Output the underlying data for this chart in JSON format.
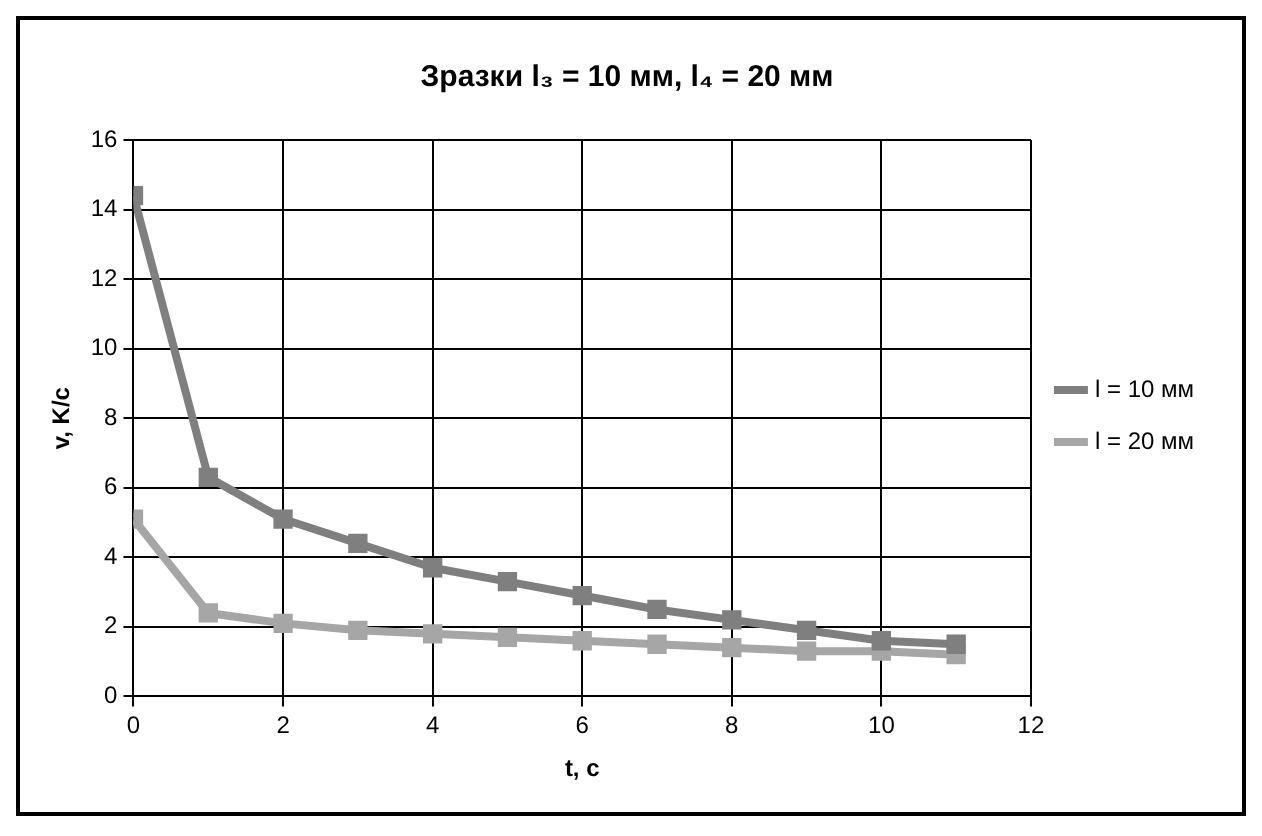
{
  "chart_data": {
    "type": "line",
    "title": "Зразки l₃ = 10 мм, l₄ = 20 мм",
    "xlabel": "t, c",
    "ylabel": "v, K/c",
    "x": [
      0,
      1,
      2,
      3,
      4,
      5,
      6,
      7,
      8,
      9,
      10,
      11
    ],
    "series": [
      {
        "name": "l = 10 мм",
        "color": "#7f7f7f",
        "values": [
          14.4,
          6.3,
          5.1,
          4.4,
          3.7,
          3.3,
          2.9,
          2.5,
          2.2,
          1.9,
          1.6,
          1.5
        ]
      },
      {
        "name": "l = 20 мм",
        "color": "#a6a6a6",
        "values": [
          5.1,
          2.4,
          2.1,
          1.9,
          1.8,
          1.7,
          1.6,
          1.5,
          1.4,
          1.3,
          1.3,
          1.2
        ]
      }
    ],
    "xlim": [
      0,
      12
    ],
    "xticks": [
      0,
      2,
      4,
      6,
      8,
      10,
      12
    ],
    "ylim": [
      0,
      16
    ],
    "yticks": [
      0,
      2,
      4,
      6,
      8,
      10,
      12,
      14,
      16
    ],
    "grid": true,
    "legend": "right",
    "marker": "square",
    "line_style": "solid"
  }
}
